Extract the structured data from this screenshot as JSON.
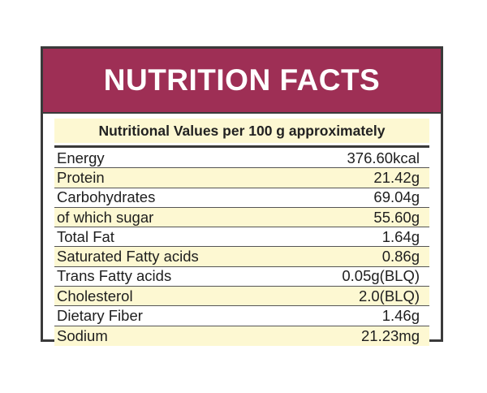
{
  "label": {
    "title": "NUTRITION FACTS",
    "subtitle": "Nutritional Values per 100 g approximately",
    "colors": {
      "title_bar": "#9e2f55",
      "shade": "#fdf8d2",
      "border": "#3a3a3a"
    },
    "rows": [
      {
        "name": "Energy",
        "value": "376.60kcal"
      },
      {
        "name": "Protein",
        "value": "21.42g"
      },
      {
        "name": "Carbohydrates",
        "value": "69.04g"
      },
      {
        "name": "of which sugar",
        "value": "55.60g"
      },
      {
        "name": "Total Fat",
        "value": "1.64g"
      },
      {
        "name": "Saturated Fatty acids",
        "value": "0.86g"
      },
      {
        "name": "Trans Fatty acids",
        "value": "0.05g(BLQ)"
      },
      {
        "name": "Cholesterol",
        "value": "2.0(BLQ)"
      },
      {
        "name": "Dietary Fiber",
        "value": "1.46g"
      },
      {
        "name": "Sodium",
        "value": "21.23mg"
      }
    ]
  }
}
